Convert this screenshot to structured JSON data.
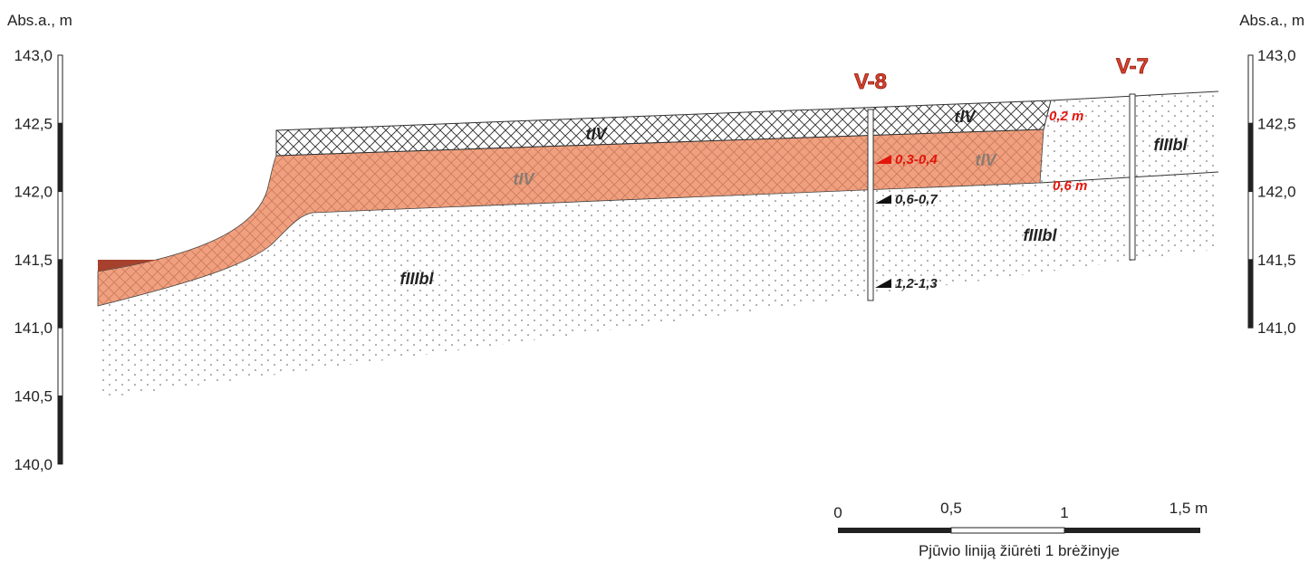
{
  "axis": {
    "left_title": "Abs.a., m",
    "right_title": "Abs.a., m",
    "left_ticks": [
      "143,0",
      "142,5",
      "142,0",
      "141,5",
      "141,0",
      "140,5",
      "140,0"
    ],
    "right_ticks": [
      "143,0",
      "142,5",
      "142,0",
      "141,5",
      "141,0"
    ]
  },
  "boreholes": [
    {
      "label": "V-8"
    },
    {
      "label": "V-7"
    }
  ],
  "layers": [
    "tIV",
    "tIV",
    "tIV",
    "tIV",
    "fIIIbl",
    "fIIIbl",
    "fIIIbl"
  ],
  "depths": [
    "0,2 m",
    "0,6 m"
  ],
  "samples": [
    "0,3-0,4",
    "0,6-0,7",
    "1,2-1,3"
  ],
  "scale": {
    "labels": [
      "0",
      "0,5",
      "1",
      "1,5 m"
    ],
    "caption": "Pjūvio liniją žiūrėti 1 brėžinyje"
  }
}
